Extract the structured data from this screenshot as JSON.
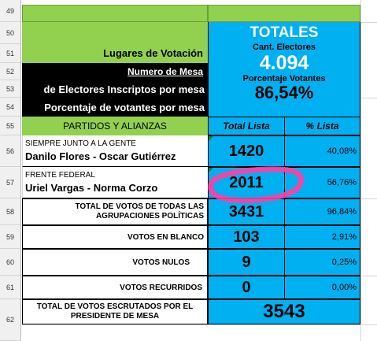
{
  "rows": [
    "49",
    "50",
    "51",
    "52",
    "53",
    "54",
    "55",
    "56",
    "57",
    "58",
    "59",
    "60",
    "61",
    "62"
  ],
  "left": {
    "lugares_label": "Lugares de Votación",
    "numero_mesa_label": "Numero de Mesa",
    "electores_label": "de Electores Inscriptos por mesa",
    "porcentaje_label": "Porcentaje de votantes por mesa",
    "partidos_header": "PARTIDOS Y ALIANZAS"
  },
  "totales": {
    "title": "TOTALES",
    "cant_electores_label": "Cant. Electores",
    "cant_electores_value": "4.094",
    "porcentaje_label": "Porcentaje Votantes",
    "porcentaje_value": "86,54%"
  },
  "columns": {
    "total_lista": "Total Lista",
    "pct_lista": "% Lista"
  },
  "parties": [
    {
      "name": "SIEMPRE JUNTO A LA GENTE",
      "candidates": "Danilo Flores - Oscar Gutiérrez",
      "total": "1420",
      "pct": "40,08%"
    },
    {
      "name": "FRENTE FEDERAL",
      "candidates": "Uriel Vargas - Norma Corzo",
      "total": "2011",
      "pct": "56,76%"
    }
  ],
  "summary": [
    {
      "label": "TOTAL DE VOTOS DE TODAS LAS AGRUPACIONES POLÍTICAS",
      "total": "3431",
      "pct": "96,84%"
    },
    {
      "label": "VOTOS EN BLANCO",
      "total": "103",
      "pct": "2,91%"
    },
    {
      "label": "VOTOS NULOS",
      "total": "9",
      "pct": "0,25%"
    },
    {
      "label": "VOTOS RECURRIDOS",
      "total": "0",
      "pct": "0,00%"
    }
  ],
  "escrutados": {
    "label_line1": "TOTAL DE VOTOS ESCRUTADOS POR EL",
    "label_line2": "PRESIDENTE DE MESA",
    "total": "3543"
  },
  "colors": {
    "green": "#92d050",
    "blue": "#00b0f0",
    "highlight": "#ff3fa3"
  }
}
